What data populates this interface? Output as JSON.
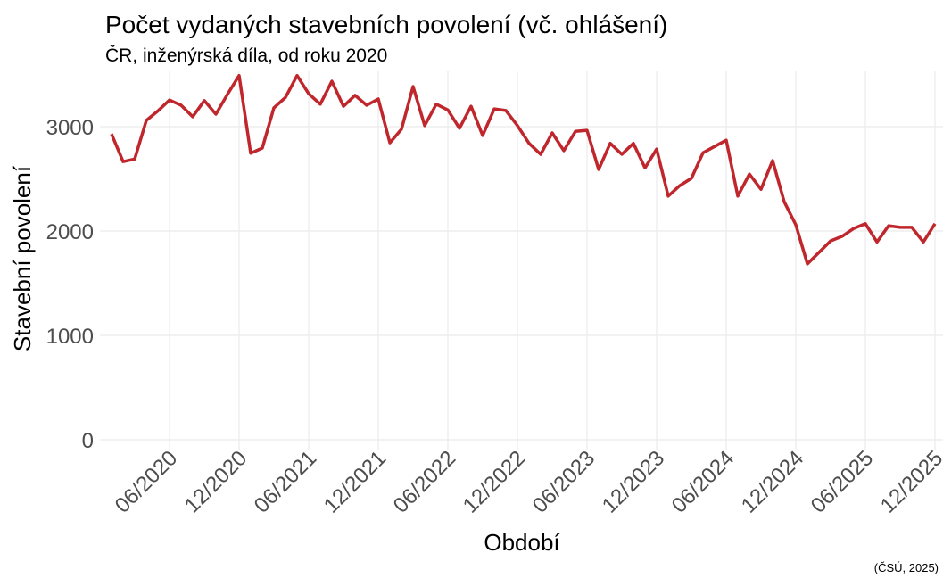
{
  "chart_data": {
    "type": "line",
    "title": "Počet vydaných stavebních povolení (vč. ohlášení)",
    "subtitle": "ČR, inženýrská díla, od roku 2020",
    "x_label": "Období",
    "y_label": "Stavební povolení",
    "caption": "(ČSÚ, 2025)",
    "x": [
      "2020-01",
      "2020-02",
      "2020-03",
      "2020-04",
      "2020-05",
      "2020-06",
      "2020-07",
      "2020-08",
      "2020-09",
      "2020-10",
      "2020-11",
      "2020-12",
      "2021-01",
      "2021-02",
      "2021-03",
      "2021-04",
      "2021-05",
      "2021-06",
      "2021-07",
      "2021-08",
      "2021-09",
      "2021-10",
      "2021-11",
      "2021-12",
      "2022-01",
      "2022-02",
      "2022-03",
      "2022-04",
      "2022-05",
      "2022-06",
      "2022-07",
      "2022-08",
      "2022-09",
      "2022-10",
      "2022-11",
      "2022-12",
      "2023-01",
      "2023-02",
      "2023-03",
      "2023-04",
      "2023-05",
      "2023-06",
      "2023-07",
      "2023-08",
      "2023-09",
      "2023-10",
      "2023-11",
      "2023-12",
      "2024-01",
      "2024-02",
      "2024-03",
      "2024-04",
      "2024-05",
      "2024-06",
      "2024-07",
      "2024-08",
      "2024-09",
      "2024-10",
      "2024-11",
      "2024-12",
      "2025-01",
      "2025-02",
      "2025-03",
      "2025-04",
      "2025-05",
      "2025-06",
      "2025-07",
      "2025-08",
      "2025-09",
      "2025-10",
      "2025-11",
      "2025-12"
    ],
    "series": [
      {
        "name": "Stavební povolení",
        "color": "#c0272d",
        "values": [
          2930,
          2665,
          2690,
          3060,
          3150,
          3255,
          3205,
          3095,
          3250,
          3120,
          3310,
          3490,
          2745,
          2795,
          3180,
          3280,
          3490,
          3315,
          3215,
          3435,
          3195,
          3300,
          3205,
          3265,
          2845,
          2975,
          3385,
          3010,
          3215,
          3160,
          2985,
          3195,
          2915,
          3170,
          3155,
          3010,
          2840,
          2735,
          2940,
          2770,
          2955,
          2965,
          2590,
          2840,
          2735,
          2840,
          2605,
          2785,
          2335,
          2435,
          2505,
          2750,
          2810,
          2870,
          2335,
          2545,
          2400,
          2675,
          2280,
          2060,
          1685,
          1795,
          1905,
          1950,
          2025,
          2070,
          1895,
          2050,
          2035,
          2035,
          1895,
          2070
        ]
      }
    ],
    "xlim": [
      "2020-01",
      "2025-12"
    ],
    "xticks": [
      {
        "value": "2020-06",
        "label": "06/2020"
      },
      {
        "value": "2020-12",
        "label": "12/2020"
      },
      {
        "value": "2021-06",
        "label": "06/2021"
      },
      {
        "value": "2021-12",
        "label": "12/2021"
      },
      {
        "value": "2022-06",
        "label": "06/2022"
      },
      {
        "value": "2022-12",
        "label": "12/2022"
      },
      {
        "value": "2023-06",
        "label": "06/2023"
      },
      {
        "value": "2023-12",
        "label": "12/2023"
      },
      {
        "value": "2024-06",
        "label": "06/2024"
      },
      {
        "value": "2024-12",
        "label": "12/2024"
      },
      {
        "value": "2025-06",
        "label": "06/2025"
      },
      {
        "value": "2025-12",
        "label": "12/2025"
      }
    ],
    "ylim": [
      0,
      3500
    ],
    "yticks": [
      0,
      1000,
      2000,
      3000
    ],
    "grid": true
  }
}
